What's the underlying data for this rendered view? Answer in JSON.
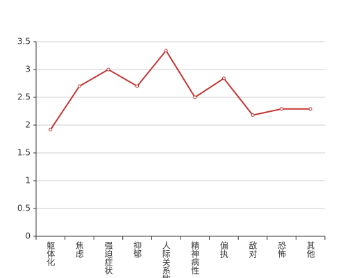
{
  "chart_data": {
    "type": "line",
    "categories": [
      "躯体化",
      "焦虑",
      "强迫症状",
      "抑郁",
      "人际关系敏感",
      "精神病性",
      "偏执",
      "敌对",
      "恐怖",
      "其他"
    ],
    "series": [
      {
        "color": "#c23531",
        "values": [
          1.92,
          2.7,
          3.0,
          2.7,
          3.34,
          2.5,
          2.84,
          2.18,
          2.29,
          2.29
        ]
      }
    ],
    "ylim": [
      0,
      3.5
    ],
    "yticks": [
      0,
      0.5,
      1,
      1.5,
      2,
      2.5,
      3,
      3.5
    ],
    "grid": true
  }
}
